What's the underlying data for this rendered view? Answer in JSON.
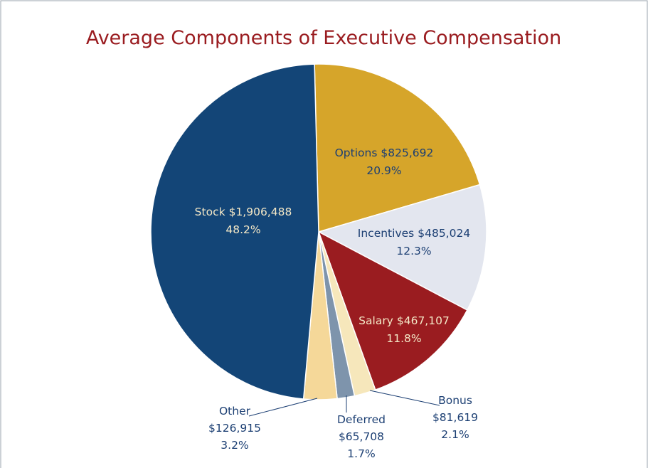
{
  "chart_data": {
    "type": "pie",
    "title": "Average Components of Executive Compensation",
    "categories": [
      "Options",
      "Incentives",
      "Salary",
      "Bonus",
      "Deferred",
      "Other",
      "Stock"
    ],
    "values": [
      825692,
      485024,
      467107,
      81619,
      65708,
      126915,
      1906488
    ],
    "value_labels": [
      "$825,692",
      "$485,024",
      "$467,107",
      "$81,619",
      "$65,708",
      "$126,915",
      "$1,906,488"
    ],
    "percents": [
      20.9,
      12.3,
      11.8,
      2.1,
      1.7,
      3.2,
      48.2
    ],
    "percent_labels": [
      "20.9%",
      "12.3%",
      "11.8%",
      "2.1%",
      "1.7%",
      "3.2%",
      "48.2%"
    ],
    "colors": [
      "#d6a52a",
      "#e3e6ef",
      "#9a1c20",
      "#f6e7bb",
      "#7e94ac",
      "#f5d899",
      "#134577"
    ]
  }
}
